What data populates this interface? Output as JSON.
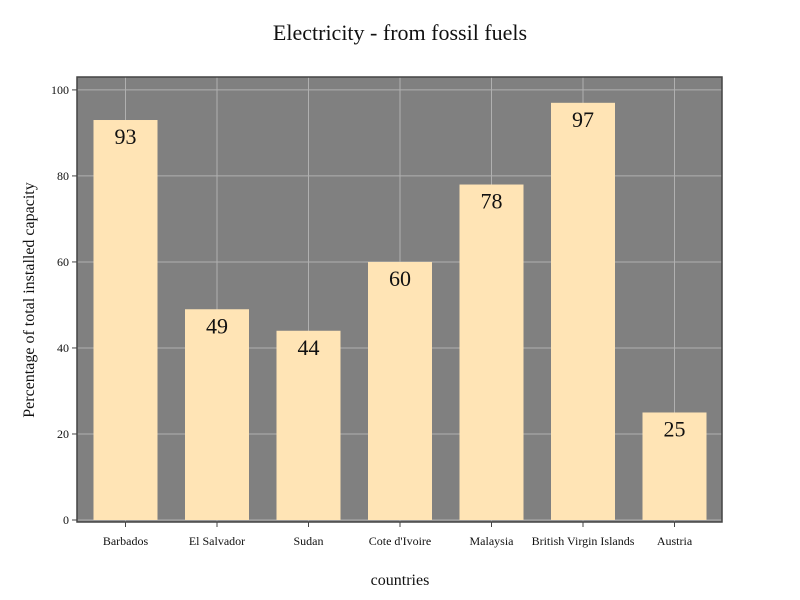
{
  "chart_data": {
    "type": "bar",
    "title": "Electricity - from fossil fuels",
    "xlabel": "countries",
    "ylabel": "Percentage of total installed capacity",
    "categories": [
      "Barbados",
      "El Salvador",
      "Sudan",
      "Cote d'Ivoire",
      "Malaysia",
      "British Virgin Islands",
      "Austria"
    ],
    "values": [
      93,
      49,
      44,
      60,
      78,
      97,
      25
    ],
    "ylim": [
      0,
      103
    ],
    "yticks": [
      0,
      20,
      40,
      60,
      80,
      100
    ],
    "grid": true,
    "colors": {
      "plot_background": "#808080",
      "bar_fill": "#ffe4b5",
      "grid": "#b0b0b0",
      "axis": "#444444",
      "text": "#111111"
    }
  }
}
